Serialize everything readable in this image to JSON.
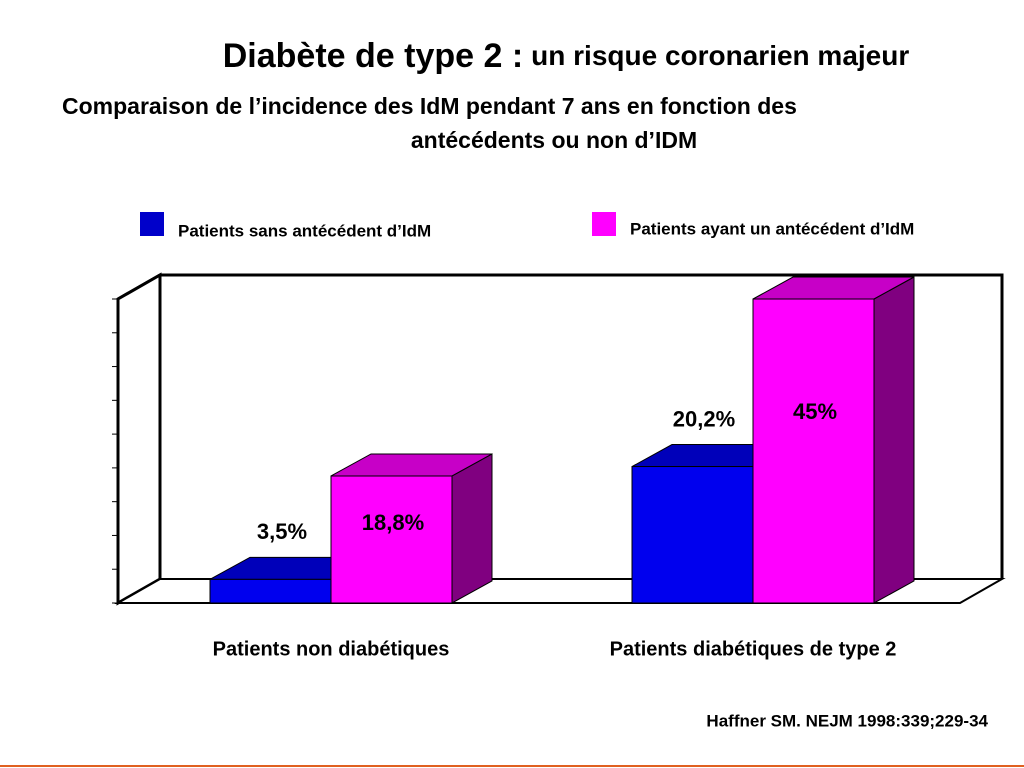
{
  "chart_data": {
    "type": "bar3d",
    "title": [
      "Diabète de type 2 :",
      "un risque coronarien majeur"
    ],
    "subtitle": [
      "Comparaison de l’incidence des IdM pendant 7 ans en fonction des",
      "antécédents ou non d’IDM"
    ],
    "categories": [
      "Patients non diabétiques",
      "Patients diabétiques de type 2"
    ],
    "series": [
      {
        "name": "Patients sans antécédent d’IdM",
        "color": "#0000ee",
        "values": [
          3.5,
          20.2
        ],
        "value_labels": [
          "3,5%",
          "20,2%"
        ]
      },
      {
        "name": "Patients ayant un antécédent d’IdM",
        "color": "#ff00ff",
        "values": [
          18.8,
          45
        ],
        "value_labels": [
          "18,8%",
          "45%"
        ]
      }
    ],
    "ylim": [
      0,
      45
    ],
    "yticks": [
      0,
      5,
      10,
      15,
      20,
      25,
      30,
      35,
      40,
      45
    ],
    "source": "Haffner SM. NEJM 1998:339;229-34"
  }
}
